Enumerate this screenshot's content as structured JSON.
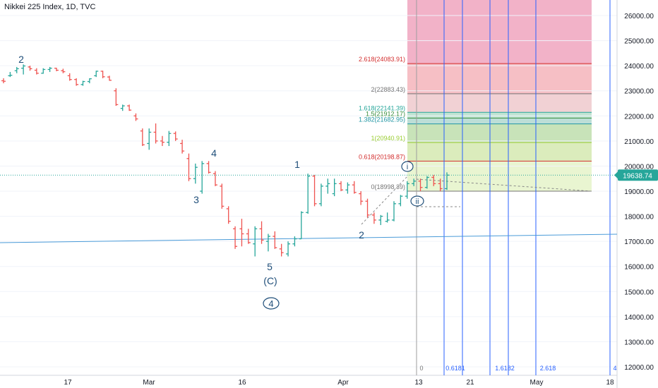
{
  "header": {
    "title": "Nikkei 225 Index, 1D, TVC"
  },
  "colors": {
    "up": "#26a69a",
    "down": "#ef5350",
    "fib_blue": "#2962ff",
    "trendline": "#4a9bd8",
    "price_line": "#26a69a",
    "wave_label": "#1f4e79",
    "axis_text": "#131722"
  },
  "chart_data": {
    "type": "candlestick",
    "title": "Nikkei 225 Index, 1D, TVC",
    "ylim": [
      11700,
      26700
    ],
    "y_ticks": [
      "12000.00",
      "13000.00",
      "14000.00",
      "15000.00",
      "16000.00",
      "17000.00",
      "18000.00",
      "19000.00",
      "20000.00",
      "21000.00",
      "22000.00",
      "23000.00",
      "24000.00",
      "25000.00",
      "26000.00"
    ],
    "x_ticks": [
      "17",
      "Mar",
      "16",
      "Apr",
      "13",
      "21",
      "May",
      "18"
    ],
    "current_price": {
      "label": "19638.74",
      "value": 19638.74
    },
    "ohlc": [
      {
        "o": 23400,
        "h": 23500,
        "l": 23300,
        "c": 23380
      },
      {
        "o": 23600,
        "h": 23750,
        "l": 23550,
        "c": 23620
      },
      {
        "o": 23800,
        "h": 23950,
        "l": 23700,
        "c": 23880
      },
      {
        "o": 23900,
        "h": 24050,
        "l": 23650,
        "c": 23990
      },
      {
        "o": 23950,
        "h": 24000,
        "l": 23800,
        "c": 23880
      },
      {
        "o": 23820,
        "h": 23900,
        "l": 23650,
        "c": 23700
      },
      {
        "o": 23700,
        "h": 23900,
        "l": 23680,
        "c": 23850
      },
      {
        "o": 23850,
        "h": 23950,
        "l": 23750,
        "c": 23900
      },
      {
        "o": 23900,
        "h": 23920,
        "l": 23780,
        "c": 23820
      },
      {
        "o": 23800,
        "h": 23880,
        "l": 23700,
        "c": 23760
      },
      {
        "o": 23600,
        "h": 23700,
        "l": 23400,
        "c": 23450
      },
      {
        "o": 23450,
        "h": 23500,
        "l": 23200,
        "c": 23250
      },
      {
        "o": 23250,
        "h": 23400,
        "l": 23200,
        "c": 23370
      },
      {
        "o": 23370,
        "h": 23500,
        "l": 23300,
        "c": 23480
      },
      {
        "o": 23600,
        "h": 23800,
        "l": 23550,
        "c": 23780
      },
      {
        "o": 23780,
        "h": 23800,
        "l": 23500,
        "c": 23560
      },
      {
        "o": 23550,
        "h": 23600,
        "l": 23400,
        "c": 23420
      },
      {
        "o": 23000,
        "h": 23100,
        "l": 22400,
        "c": 22450
      },
      {
        "o": 22300,
        "h": 22450,
        "l": 22200,
        "c": 22400
      },
      {
        "o": 22400,
        "h": 22450,
        "l": 22200,
        "c": 22230
      },
      {
        "o": 22000,
        "h": 22100,
        "l": 21800,
        "c": 21880
      },
      {
        "o": 21400,
        "h": 21500,
        "l": 20800,
        "c": 20850
      },
      {
        "o": 20900,
        "h": 21500,
        "l": 20650,
        "c": 21350
      },
      {
        "o": 21350,
        "h": 21700,
        "l": 20900,
        "c": 21000
      },
      {
        "o": 21000,
        "h": 21200,
        "l": 20800,
        "c": 20950
      },
      {
        "o": 20950,
        "h": 21400,
        "l": 20800,
        "c": 21300
      },
      {
        "o": 21300,
        "h": 21380,
        "l": 21000,
        "c": 21080
      },
      {
        "o": 20900,
        "h": 21050,
        "l": 20500,
        "c": 20600
      },
      {
        "o": 20300,
        "h": 20500,
        "l": 19400,
        "c": 19500
      },
      {
        "o": 19500,
        "h": 20100,
        "l": 19300,
        "c": 19950
      },
      {
        "o": 19000,
        "h": 20200,
        "l": 18900,
        "c": 20100
      },
      {
        "o": 20100,
        "h": 20200,
        "l": 19700,
        "c": 19750
      },
      {
        "o": 19700,
        "h": 19800,
        "l": 19200,
        "c": 19250
      },
      {
        "o": 19200,
        "h": 19300,
        "l": 18300,
        "c": 18400
      },
      {
        "o": 18300,
        "h": 18400,
        "l": 17700,
        "c": 17800
      },
      {
        "o": 17500,
        "h": 17600,
        "l": 16700,
        "c": 16800
      },
      {
        "o": 17500,
        "h": 17900,
        "l": 16800,
        "c": 17300
      },
      {
        "o": 17300,
        "h": 17500,
        "l": 16900,
        "c": 16950
      },
      {
        "o": 16900,
        "h": 17600,
        "l": 16400,
        "c": 17500
      },
      {
        "o": 17500,
        "h": 17800,
        "l": 16900,
        "c": 17050
      },
      {
        "o": 17000,
        "h": 17300,
        "l": 16600,
        "c": 17200
      },
      {
        "o": 17200,
        "h": 17400,
        "l": 16700,
        "c": 16750
      },
      {
        "o": 16700,
        "h": 16900,
        "l": 16400,
        "c": 16550
      },
      {
        "o": 16500,
        "h": 17000,
        "l": 16400,
        "c": 16900
      },
      {
        "o": 16900,
        "h": 17200,
        "l": 16800,
        "c": 17100
      },
      {
        "o": 17100,
        "h": 18200,
        "l": 17100,
        "c": 18150
      },
      {
        "o": 18150,
        "h": 19700,
        "l": 18100,
        "c": 19600
      },
      {
        "o": 19600,
        "h": 19650,
        "l": 18400,
        "c": 18500
      },
      {
        "o": 18500,
        "h": 19300,
        "l": 18400,
        "c": 19200
      },
      {
        "o": 19200,
        "h": 19500,
        "l": 18900,
        "c": 19300
      },
      {
        "o": 18900,
        "h": 19500,
        "l": 18800,
        "c": 19300
      },
      {
        "o": 19300,
        "h": 19400,
        "l": 19000,
        "c": 19050
      },
      {
        "o": 19050,
        "h": 19350,
        "l": 18900,
        "c": 19250
      },
      {
        "o": 19250,
        "h": 19400,
        "l": 18900,
        "c": 18950
      },
      {
        "o": 18900,
        "h": 19000,
        "l": 18450,
        "c": 18600
      },
      {
        "o": 18600,
        "h": 18700,
        "l": 17950,
        "c": 18050
      },
      {
        "o": 18050,
        "h": 18150,
        "l": 17700,
        "c": 17850
      },
      {
        "o": 17850,
        "h": 18050,
        "l": 17650,
        "c": 18000
      },
      {
        "o": 17800,
        "h": 18150,
        "l": 17750,
        "c": 17850
      },
      {
        "o": 17850,
        "h": 18600,
        "l": 17800,
        "c": 18500
      },
      {
        "o": 18500,
        "h": 18850,
        "l": 18400,
        "c": 18800
      },
      {
        "o": 18800,
        "h": 19400,
        "l": 18700,
        "c": 19300
      },
      {
        "o": 19300,
        "h": 19500,
        "l": 19200,
        "c": 19400
      },
      {
        "o": 19400,
        "h": 19500,
        "l": 19000,
        "c": 19150
      },
      {
        "o": 19150,
        "h": 19600,
        "l": 19100,
        "c": 19550
      },
      {
        "o": 19550,
        "h": 19650,
        "l": 19200,
        "c": 19300
      },
      {
        "o": 19300,
        "h": 19500,
        "l": 19000,
        "c": 19100
      },
      {
        "o": 19100,
        "h": 19750,
        "l": 19050,
        "c": 19640
      }
    ],
    "fib_extension": [
      {
        "label": "2.618(24083.91)",
        "value": 24083.91,
        "color": "#d32f2f"
      },
      {
        "label": "2(22883.43)",
        "value": 22883.43,
        "color": "#757575"
      },
      {
        "label": "1.618(22141.39)",
        "value": 22141.39,
        "color": "#26a69a"
      },
      {
        "label": "1.5(21912.17)",
        "value": 21912.17,
        "color": "#388e3c"
      },
      {
        "label": "1.382(21682.95)",
        "value": 21682.95,
        "color": "#2196a3"
      },
      {
        "label": "1(20940.91)",
        "value": 20940.91,
        "color": "#9acd32"
      },
      {
        "label": "0.618(20198.87)",
        "value": 20198.87,
        "color": "#d32f2f"
      },
      {
        "label": "0(18998.39)",
        "value": 18998.39,
        "color": "#757575"
      }
    ],
    "fib_time_zones": [
      "0",
      "0.6181",
      "1.6182",
      "2.618",
      "4"
    ],
    "wave_labels": [
      "2",
      "4",
      "3",
      "1",
      "2",
      "5",
      "(C)",
      "4",
      "i",
      "ii"
    ]
  }
}
